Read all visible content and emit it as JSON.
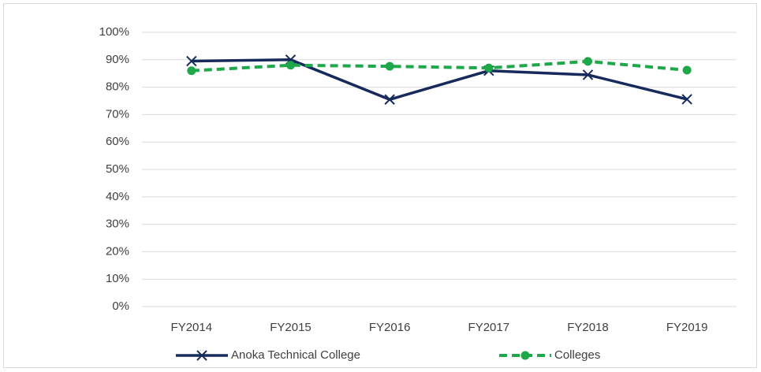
{
  "chart_data": {
    "type": "line",
    "categories": [
      "FY2014",
      "FY2015",
      "FY2016",
      "FY2017",
      "FY2018",
      "FY2019"
    ],
    "series": [
      {
        "name": "Anoka Technical College",
        "color": "#172a5c",
        "values": [
          89.5,
          90,
          75.5,
          86,
          84.5,
          75.6
        ]
      },
      {
        "name": "Colleges",
        "color": "#1ea84a",
        "values": [
          86,
          88,
          87.6,
          87,
          89.4,
          86.2
        ]
      }
    ],
    "ylim": [
      0,
      100
    ],
    "yticks": [
      {
        "value": 0,
        "label": "0%"
      },
      {
        "value": 10,
        "label": "10%"
      },
      {
        "value": 20,
        "label": "20%"
      },
      {
        "value": 30,
        "label": "30%"
      },
      {
        "value": 40,
        "label": "40%"
      },
      {
        "value": 50,
        "label": "50%"
      },
      {
        "value": 60,
        "label": "60%"
      },
      {
        "value": 70,
        "label": "70%"
      },
      {
        "value": 80,
        "label": "80%"
      },
      {
        "value": 90,
        "label": "90%"
      },
      {
        "value": 100,
        "label": "100%"
      }
    ],
    "grid": true,
    "legend": "bottom"
  }
}
